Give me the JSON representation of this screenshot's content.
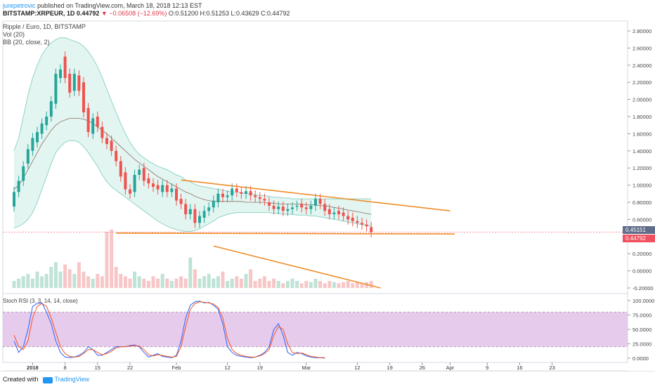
{
  "header": {
    "author": "jurepetrovic",
    "published": "published on TradingView.com, March 18, 2018 12:13 EST",
    "symbol": "BITSTAMP:XRPEUR, 1D",
    "last": "0.44792",
    "change": "▼ −0.06508 (−12.69%)",
    "ohlc": "O:0.51200 H:0.51253 L:0.43629 C:0.44792"
  },
  "legend": {
    "title": "Ripple / Euro, 1D, BITSTAMP",
    "vol": "Vol (20)",
    "bb": "BB (20, close, 2)"
  },
  "price_tags": {
    "upper": "0.45151",
    "lower": "0.44792",
    "upper_color": "#5f6c8a",
    "lower_color": "#f0505f"
  },
  "rsi": {
    "label": "Stoch RSI (3, 3, 14, 14, close)"
  },
  "footer": {
    "created_with": "Created with",
    "brand": "TradingView"
  },
  "colors": {
    "up": "#26a69a",
    "down": "#ef5350",
    "band": "#8fd3c7",
    "basis": "#8d6e63",
    "trend": "#f08c28",
    "rsi_fill": "#e1bee7",
    "k": "#2962ff",
    "d": "#f4511e"
  },
  "chart_data": {
    "type": "candlestick",
    "title": "Ripple / Euro, 1D, BITSTAMP",
    "price_ticks": [
      "2.80000",
      "2.60000",
      "2.40000",
      "2.20000",
      "2.00000",
      "1.80000",
      "1.60000",
      "1.40000",
      "1.20000",
      "1.00000",
      "0.80000",
      "0.60000",
      "0.40000",
      "0.20000",
      "0.00000",
      "-0.20000"
    ],
    "rsi_ticks": [
      "100.0000",
      "75.0000",
      "50.0000",
      "25.0000",
      "0.0000"
    ],
    "x_ticks": [
      {
        "day": 0,
        "label": "2018",
        "bold": true
      },
      {
        "day": 7,
        "label": "8"
      },
      {
        "day": 14,
        "label": "15"
      },
      {
        "day": 21,
        "label": "22"
      },
      {
        "day": 31,
        "label": "Feb"
      },
      {
        "day": 42,
        "label": "12"
      },
      {
        "day": 49,
        "label": "19"
      },
      {
        "day": 59,
        "label": "Mar"
      },
      {
        "day": 70,
        "label": "12"
      },
      {
        "day": 77,
        "label": "19"
      },
      {
        "day": 84,
        "label": "26"
      },
      {
        "day": 90,
        "label": "Apr"
      },
      {
        "day": 98,
        "label": "9"
      },
      {
        "day": 105,
        "label": "16"
      },
      {
        "day": 112,
        "label": "23"
      }
    ],
    "ylim": [
      -0.2,
      2.8
    ],
    "start_day": -4,
    "candles_close": [
      0.92,
      1.05,
      1.22,
      1.42,
      1.55,
      1.62,
      1.72,
      1.8,
      1.98,
      2.3,
      2.35,
      2.25,
      2.08,
      2.3,
      2.1,
      1.85,
      1.62,
      1.78,
      1.68,
      1.55,
      1.48,
      1.4,
      1.28,
      1.1,
      0.95,
      0.9,
      1.12,
      1.18,
      1.05,
      1.02,
      0.98,
      0.95,
      1.0,
      0.92,
      0.96,
      0.82,
      0.78,
      0.66,
      0.72,
      0.56,
      0.64,
      0.7,
      0.74,
      0.82,
      0.9,
      0.86,
      0.88,
      0.96,
      0.92,
      0.9,
      0.93,
      0.88,
      0.86,
      0.84,
      0.82,
      0.76,
      0.72,
      0.75,
      0.7,
      0.72,
      0.74,
      0.76,
      0.74,
      0.72,
      0.76,
      0.84,
      0.78,
      0.7,
      0.66,
      0.68,
      0.66,
      0.64,
      0.6,
      0.58,
      0.56,
      0.54,
      0.52,
      0.45
    ],
    "candles_open": [
      0.75,
      0.92,
      1.05,
      1.25,
      1.4,
      1.5,
      1.6,
      1.7,
      1.8,
      1.95,
      2.25,
      2.5,
      2.3,
      2.1,
      2.28,
      2.2,
      1.9,
      1.6,
      1.8,
      1.68,
      1.55,
      1.52,
      1.4,
      1.28,
      1.15,
      0.95,
      0.92,
      1.12,
      1.2,
      1.08,
      1.02,
      1.0,
      0.92,
      1.0,
      0.92,
      0.96,
      0.84,
      0.78,
      0.66,
      0.72,
      0.56,
      0.62,
      0.7,
      0.74,
      0.8,
      0.9,
      0.86,
      0.88,
      0.96,
      0.92,
      0.9,
      0.93,
      0.88,
      0.86,
      0.84,
      0.8,
      0.76,
      0.72,
      0.75,
      0.7,
      0.72,
      0.76,
      0.78,
      0.74,
      0.72,
      0.76,
      0.84,
      0.78,
      0.72,
      0.66,
      0.7,
      0.68,
      0.64,
      0.62,
      0.58,
      0.56,
      0.54,
      0.51
    ],
    "bb_upper": [
      1.4,
      1.55,
      1.8,
      2.05,
      2.25,
      2.4,
      2.52,
      2.6,
      2.66,
      2.7,
      2.72,
      2.72,
      2.7,
      2.68,
      2.66,
      2.62,
      2.56,
      2.48,
      2.38,
      2.26,
      2.12,
      1.98,
      1.85,
      1.72,
      1.6,
      1.5,
      1.42,
      1.36,
      1.32,
      1.28,
      1.25,
      1.22,
      1.2,
      1.18,
      1.15,
      1.12,
      1.1,
      1.06,
      1.04,
      1.01,
      0.99,
      0.98,
      0.97,
      0.96,
      0.95,
      0.94,
      0.93,
      0.92,
      0.92,
      0.91,
      0.9,
      0.9,
      0.89,
      0.88,
      0.88,
      0.87,
      0.86,
      0.86,
      0.85,
      0.85,
      0.84,
      0.84,
      0.84,
      0.84,
      0.84,
      0.84,
      0.84,
      0.84,
      0.84,
      0.84,
      0.84,
      0.84,
      0.84,
      0.84,
      0.84,
      0.84,
      0.84,
      0.84
    ],
    "bb_basis": [
      0.95,
      1.0,
      1.08,
      1.18,
      1.28,
      1.38,
      1.48,
      1.56,
      1.64,
      1.7,
      1.74,
      1.76,
      1.78,
      1.78,
      1.78,
      1.77,
      1.75,
      1.72,
      1.68,
      1.64,
      1.6,
      1.55,
      1.5,
      1.45,
      1.4,
      1.35,
      1.3,
      1.26,
      1.22,
      1.18,
      1.14,
      1.1,
      1.07,
      1.04,
      1.01,
      0.98,
      0.95,
      0.92,
      0.9,
      0.87,
      0.85,
      0.83,
      0.82,
      0.81,
      0.81,
      0.81,
      0.81,
      0.81,
      0.81,
      0.81,
      0.8,
      0.8,
      0.8,
      0.8,
      0.8,
      0.79,
      0.79,
      0.78,
      0.78,
      0.78,
      0.78,
      0.78,
      0.78,
      0.77,
      0.77,
      0.77,
      0.76,
      0.76,
      0.75,
      0.74,
      0.73,
      0.72,
      0.71,
      0.7,
      0.69,
      0.68,
      0.67,
      0.66
    ],
    "bb_lower": [
      0.5,
      0.52,
      0.55,
      0.6,
      0.68,
      0.8,
      0.95,
      1.1,
      1.25,
      1.38,
      1.45,
      1.5,
      1.52,
      1.52,
      1.5,
      1.45,
      1.38,
      1.3,
      1.22,
      1.12,
      1.04,
      0.98,
      0.94,
      0.9,
      0.86,
      0.82,
      0.78,
      0.74,
      0.7,
      0.66,
      0.62,
      0.58,
      0.55,
      0.52,
      0.5,
      0.48,
      0.47,
      0.46,
      0.46,
      0.47,
      0.49,
      0.52,
      0.55,
      0.58,
      0.62,
      0.64,
      0.66,
      0.67,
      0.68,
      0.68,
      0.68,
      0.68,
      0.68,
      0.68,
      0.68,
      0.68,
      0.67,
      0.67,
      0.66,
      0.66,
      0.66,
      0.65,
      0.65,
      0.65,
      0.64,
      0.64,
      0.63,
      0.62,
      0.61,
      0.6,
      0.59,
      0.58,
      0.57,
      0.56,
      0.55,
      0.54,
      0.53,
      0.52
    ],
    "volume": [
      0.06,
      0.08,
      0.1,
      0.12,
      0.08,
      0.14,
      0.1,
      0.12,
      0.18,
      0.22,
      0.14,
      0.2,
      0.16,
      0.12,
      0.22,
      0.14,
      0.1,
      0.08,
      0.12,
      0.1,
      0.48,
      0.5,
      0.18,
      0.12,
      0.1,
      0.08,
      0.14,
      0.1,
      0.08,
      0.06,
      0.1,
      0.08,
      0.12,
      0.08,
      0.06,
      0.08,
      0.1,
      0.08,
      0.26,
      0.16,
      0.08,
      0.1,
      0.12,
      0.08,
      0.1,
      0.14,
      0.06,
      0.08,
      0.1,
      0.08,
      0.12,
      0.16,
      0.06,
      0.08,
      0.1,
      0.06,
      0.08,
      0.06,
      0.04,
      0.06,
      0.08,
      0.06,
      0.04,
      0.06,
      0.05,
      0.08,
      0.06,
      0.04,
      0.06,
      0.05,
      0.04,
      0.05,
      0.06,
      0.04,
      0.05,
      0.04,
      0.05,
      0.06
    ],
    "trendlines": [
      {
        "x1": 32,
        "y1": 1.06,
        "x2": 90,
        "y2": 0.7
      },
      {
        "x1": 18,
        "y1": 0.44,
        "x2": 91,
        "y2": 0.43
      },
      {
        "x1": 39,
        "y1": 0.29,
        "x2": 75,
        "y2": -0.2
      }
    ],
    "stoch_k": [
      30,
      10,
      20,
      50,
      90,
      95,
      96,
      80,
      60,
      30,
      10,
      2,
      1,
      2,
      5,
      10,
      20,
      15,
      5,
      5,
      10,
      15,
      20,
      20,
      20,
      22,
      23,
      20,
      10,
      2,
      5,
      8,
      3,
      2,
      1,
      5,
      30,
      70,
      92,
      98,
      99,
      96,
      97,
      92,
      85,
      60,
      20,
      10,
      5,
      3,
      2,
      1,
      2,
      5,
      10,
      20,
      50,
      60,
      40,
      10,
      5,
      10,
      8,
      4,
      2,
      1,
      1,
      0
    ],
    "stoch_d": [
      40,
      20,
      15,
      30,
      70,
      90,
      95,
      90,
      70,
      45,
      20,
      8,
      3,
      2,
      3,
      8,
      15,
      15,
      10,
      6,
      8,
      12,
      18,
      20,
      20,
      21,
      22,
      21,
      15,
      6,
      4,
      6,
      5,
      3,
      2,
      3,
      20,
      55,
      85,
      95,
      98,
      97,
      96,
      94,
      88,
      70,
      35,
      15,
      8,
      5,
      3,
      2,
      2,
      4,
      8,
      15,
      40,
      55,
      50,
      25,
      10,
      8,
      9,
      6,
      3,
      2,
      1,
      1
    ]
  }
}
